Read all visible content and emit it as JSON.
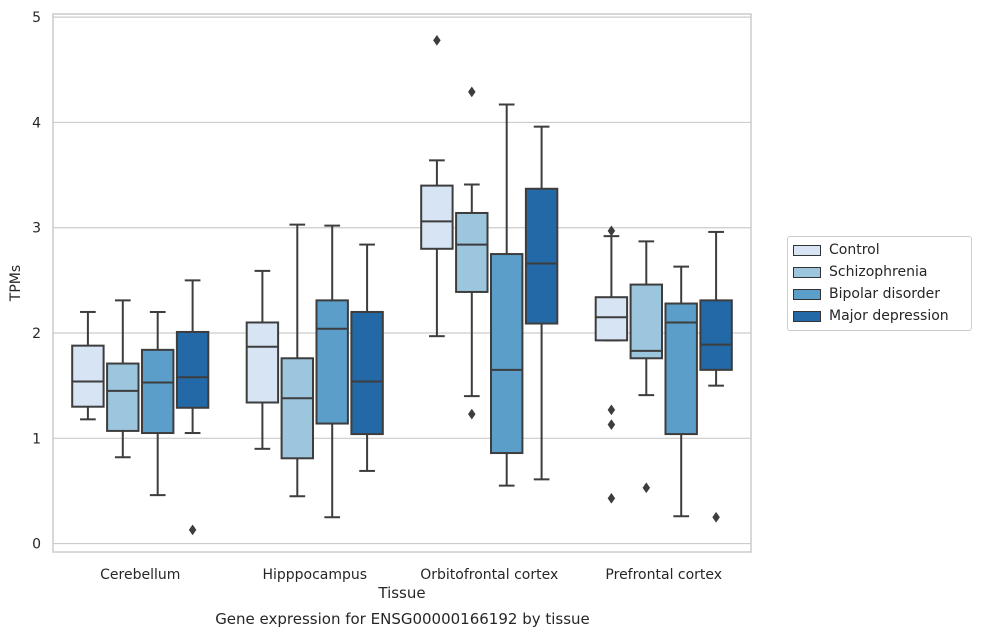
{
  "chart_data": {
    "type": "box",
    "xlabel": "Tissue",
    "ylabel": "TPMs",
    "caption": "Gene expression for ENSG00000166192 by tissue",
    "ylim": [
      -0.08,
      5.03
    ],
    "yticks": [
      0,
      1,
      2,
      3,
      4,
      5
    ],
    "grid": "horizontal",
    "legend_placement": "right",
    "categories": [
      "Cerebellum",
      "Hipppocampus",
      "Orbitofrontal cortex",
      "Prefrontal cortex"
    ],
    "series": [
      {
        "name": "Control",
        "color": "#d6e4f3",
        "boxes": [
          {
            "whisker_low": 1.18,
            "q1": 1.3,
            "median": 1.54,
            "q3": 1.88,
            "whisker_high": 2.2,
            "outliers": []
          },
          {
            "whisker_low": 0.9,
            "q1": 1.34,
            "median": 1.87,
            "q3": 2.1,
            "whisker_high": 2.59,
            "outliers": []
          },
          {
            "whisker_low": 1.97,
            "q1": 2.8,
            "median": 3.06,
            "q3": 3.4,
            "whisker_high": 3.64,
            "outliers": [
              4.78
            ]
          },
          {
            "whisker_low": 1.93,
            "q1": 1.93,
            "median": 2.15,
            "q3": 2.34,
            "whisker_high": 2.92,
            "outliers": [
              2.97,
              1.27,
              1.13,
              0.43
            ]
          }
        ]
      },
      {
        "name": "Schizophrenia",
        "color": "#9bc6de",
        "boxes": [
          {
            "whisker_low": 0.82,
            "q1": 1.07,
            "median": 1.45,
            "q3": 1.71,
            "whisker_high": 2.31,
            "outliers": []
          },
          {
            "whisker_low": 0.45,
            "q1": 0.81,
            "median": 1.38,
            "q3": 1.76,
            "whisker_high": 3.03,
            "outliers": []
          },
          {
            "whisker_low": 1.4,
            "q1": 2.39,
            "median": 2.84,
            "q3": 3.14,
            "whisker_high": 3.41,
            "outliers": [
              4.29,
              1.23
            ]
          },
          {
            "whisker_low": 1.41,
            "q1": 1.76,
            "median": 1.83,
            "q3": 2.46,
            "whisker_high": 2.87,
            "outliers": [
              0.53
            ]
          }
        ]
      },
      {
        "name": "Bipolar disorder",
        "color": "#5a9ec9",
        "boxes": [
          {
            "whisker_low": 0.46,
            "q1": 1.05,
            "median": 1.53,
            "q3": 1.84,
            "whisker_high": 2.2,
            "outliers": []
          },
          {
            "whisker_low": 0.25,
            "q1": 1.14,
            "median": 2.04,
            "q3": 2.31,
            "whisker_high": 3.02,
            "outliers": []
          },
          {
            "whisker_low": 0.55,
            "q1": 0.86,
            "median": 1.65,
            "q3": 2.75,
            "whisker_high": 4.17,
            "outliers": []
          },
          {
            "whisker_low": 0.26,
            "q1": 1.04,
            "median": 2.1,
            "q3": 2.28,
            "whisker_high": 2.63,
            "outliers": []
          }
        ]
      },
      {
        "name": "Major depression",
        "color": "#2369a8",
        "boxes": [
          {
            "whisker_low": 1.05,
            "q1": 1.29,
            "median": 1.58,
            "q3": 2.01,
            "whisker_high": 2.5,
            "outliers": [
              0.13
            ]
          },
          {
            "whisker_low": 0.69,
            "q1": 1.04,
            "median": 1.54,
            "q3": 2.2,
            "whisker_high": 2.84,
            "outliers": []
          },
          {
            "whisker_low": 0.61,
            "q1": 2.09,
            "median": 2.66,
            "q3": 3.37,
            "whisker_high": 3.96,
            "outliers": []
          },
          {
            "whisker_low": 1.5,
            "q1": 1.65,
            "median": 1.89,
            "q3": 2.31,
            "whisker_high": 2.96,
            "outliers": [
              0.25
            ]
          }
        ]
      }
    ]
  }
}
